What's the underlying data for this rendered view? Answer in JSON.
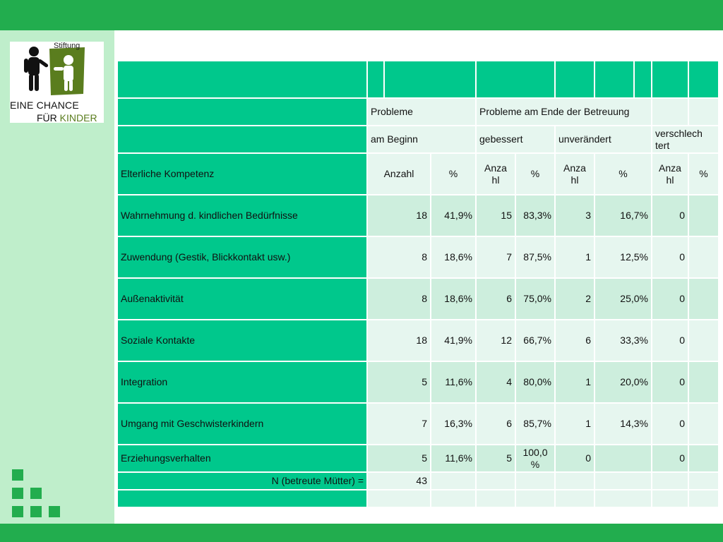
{
  "logo": {
    "stiftung": "Stiftung",
    "line1": "EINE CHANCE",
    "line2_prefix": "FÜR ",
    "line2_highlight": "KINDER"
  },
  "table": {
    "header1": {
      "probleme": "Probleme",
      "probleme_ende": "Probleme am Ende der Betreuung"
    },
    "header2": {
      "am_beginn": "am Beginn",
      "gebessert": "gebessert",
      "unveraendert": "unverändert",
      "verschlechtert": "verschlech tert"
    },
    "header3": {
      "title": "Elterliche Kompetenz",
      "anzahl": "Anzahl",
      "pct": "%",
      "anza_hl": "Anza hl",
      "pct_small": "%"
    },
    "rows": [
      {
        "label": "Wahrnehmung d. kindlichen Bedürfnisse",
        "a": "18",
        "ap": "41,9%",
        "g": "15",
        "gp": "83,3%",
        "u": "3",
        "up": "16,7%",
        "v": "0",
        "vp": ""
      },
      {
        "label": "Zuwendung (Gestik, Blickkontakt usw.)",
        "a": "8",
        "ap": "18,6%",
        "g": "7",
        "gp": "87,5%",
        "u": "1",
        "up": "12,5%",
        "v": "0",
        "vp": ""
      },
      {
        "label": "Außenaktivität",
        "a": "8",
        "ap": "18,6%",
        "g": "6",
        "gp": "75,0%",
        "u": "2",
        "up": "25,0%",
        "v": "0",
        "vp": ""
      },
      {
        "label": "Soziale Kontakte",
        "a": "18",
        "ap": "41,9%",
        "g": "12",
        "gp": "66,7%",
        "u": "6",
        "up": "33,3%",
        "v": "0",
        "vp": ""
      },
      {
        "label": "Integration",
        "a": "5",
        "ap": "11,6%",
        "g": "4",
        "gp": "80,0%",
        "u": "1",
        "up": "20,0%",
        "v": "0",
        "vp": ""
      },
      {
        "label": "Umgang mit Geschwisterkindern",
        "a": "7",
        "ap": "16,3%",
        "g": "6",
        "gp": "85,7%",
        "u": "1",
        "up": "14,3%",
        "v": "0",
        "vp": ""
      },
      {
        "label": "Erziehungsverhalten",
        "a": "5",
        "ap": "11,6%",
        "g": "5",
        "gp": "100,0 %",
        "u": "0",
        "up": "",
        "v": "0",
        "vp": ""
      }
    ],
    "footer": {
      "label": "N (betreute Mütter) =",
      "value": "43"
    }
  },
  "colors": {
    "bar": "#22ad4e",
    "panel": "#bfeecb",
    "header_green": "#00c88c",
    "cell_light": "#e6f6ef",
    "cell_mid": "#cdeedd"
  }
}
